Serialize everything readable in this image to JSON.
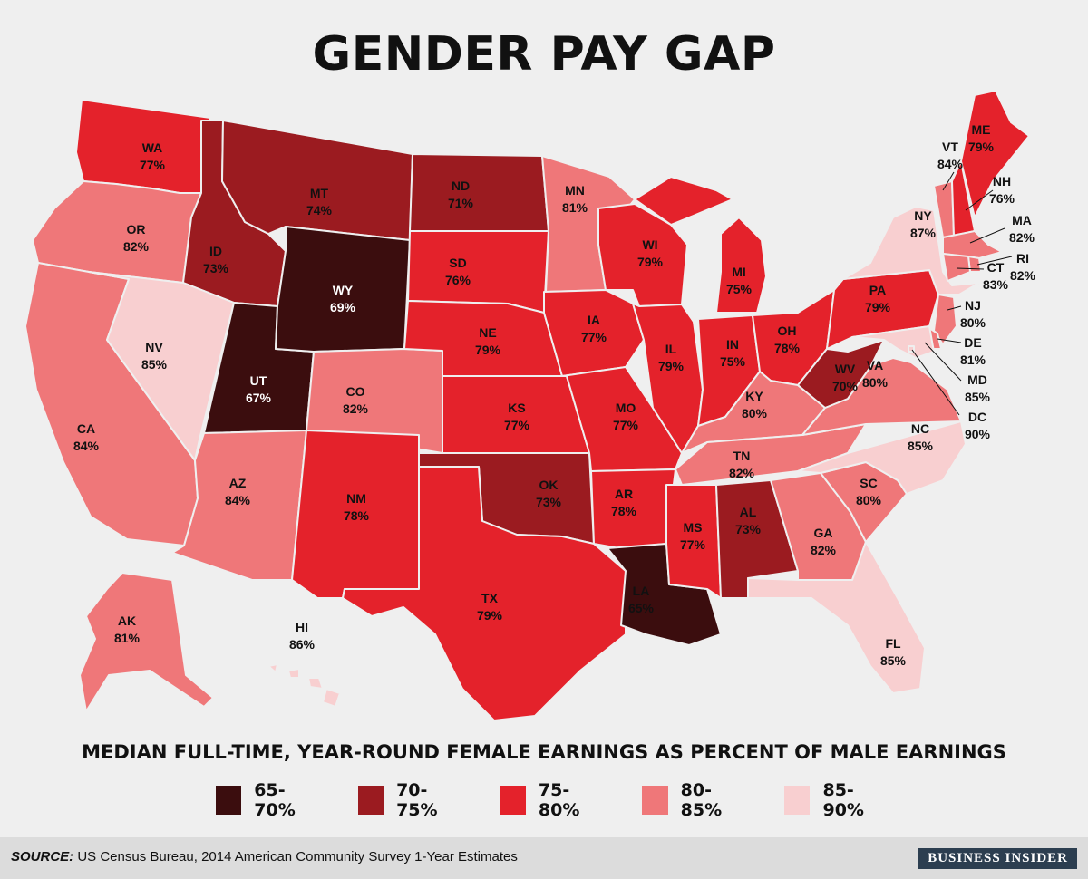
{
  "title": "GENDER PAY GAP",
  "subtitle": "MEDIAN FULL-TIME, YEAR-ROUND FEMALE EARNINGS AS PERCENT OF MALE EARNINGS",
  "legend": [
    {
      "label": "65-70%",
      "color": "#3b0d0e"
    },
    {
      "label": "70-75%",
      "color": "#9b1b20"
    },
    {
      "label": "75-80%",
      "color": "#e4222b"
    },
    {
      "label": "80-85%",
      "color": "#ef7779"
    },
    {
      "label": "85-90%",
      "color": "#f8cfd0"
    }
  ],
  "source_prefix": "SOURCE:",
  "source_text": " US Census Bureau, 2014 American Community Survey 1-Year Estimates",
  "brand": "BUSINESS INSIDER",
  "states": [
    {
      "code": "WA",
      "value": "77%"
    },
    {
      "code": "OR",
      "value": "82%"
    },
    {
      "code": "CA",
      "value": "84%"
    },
    {
      "code": "ID",
      "value": "73%"
    },
    {
      "code": "NV",
      "value": "85%"
    },
    {
      "code": "UT",
      "value": "67%"
    },
    {
      "code": "AZ",
      "value": "84%"
    },
    {
      "code": "MT",
      "value": "74%"
    },
    {
      "code": "WY",
      "value": "69%"
    },
    {
      "code": "CO",
      "value": "82%"
    },
    {
      "code": "NM",
      "value": "78%"
    },
    {
      "code": "ND",
      "value": "71%"
    },
    {
      "code": "SD",
      "value": "76%"
    },
    {
      "code": "NE",
      "value": "79%"
    },
    {
      "code": "KS",
      "value": "77%"
    },
    {
      "code": "OK",
      "value": "73%"
    },
    {
      "code": "TX",
      "value": "79%"
    },
    {
      "code": "MN",
      "value": "81%"
    },
    {
      "code": "IA",
      "value": "77%"
    },
    {
      "code": "MO",
      "value": "77%"
    },
    {
      "code": "AR",
      "value": "78%"
    },
    {
      "code": "LA",
      "value": "65%"
    },
    {
      "code": "WI",
      "value": "79%"
    },
    {
      "code": "IL",
      "value": "79%"
    },
    {
      "code": "MI",
      "value": "75%"
    },
    {
      "code": "IN",
      "value": "75%"
    },
    {
      "code": "OH",
      "value": "78%"
    },
    {
      "code": "KY",
      "value": "80%"
    },
    {
      "code": "TN",
      "value": "82%"
    },
    {
      "code": "MS",
      "value": "77%"
    },
    {
      "code": "AL",
      "value": "73%"
    },
    {
      "code": "GA",
      "value": "82%"
    },
    {
      "code": "FL",
      "value": "85%"
    },
    {
      "code": "SC",
      "value": "80%"
    },
    {
      "code": "NC",
      "value": "85%"
    },
    {
      "code": "VA",
      "value": "80%"
    },
    {
      "code": "WV",
      "value": "70%"
    },
    {
      "code": "PA",
      "value": "79%"
    },
    {
      "code": "NY",
      "value": "87%"
    },
    {
      "code": "VT",
      "value": "84%"
    },
    {
      "code": "NH",
      "value": "76%"
    },
    {
      "code": "ME",
      "value": "79%"
    },
    {
      "code": "MA",
      "value": "82%"
    },
    {
      "code": "RI",
      "value": "82%"
    },
    {
      "code": "CT",
      "value": "83%"
    },
    {
      "code": "NJ",
      "value": "80%"
    },
    {
      "code": "DE",
      "value": "81%"
    },
    {
      "code": "MD",
      "value": "85%"
    },
    {
      "code": "DC",
      "value": "90%"
    },
    {
      "code": "AK",
      "value": "81%"
    },
    {
      "code": "HI",
      "value": "86%"
    }
  ]
}
